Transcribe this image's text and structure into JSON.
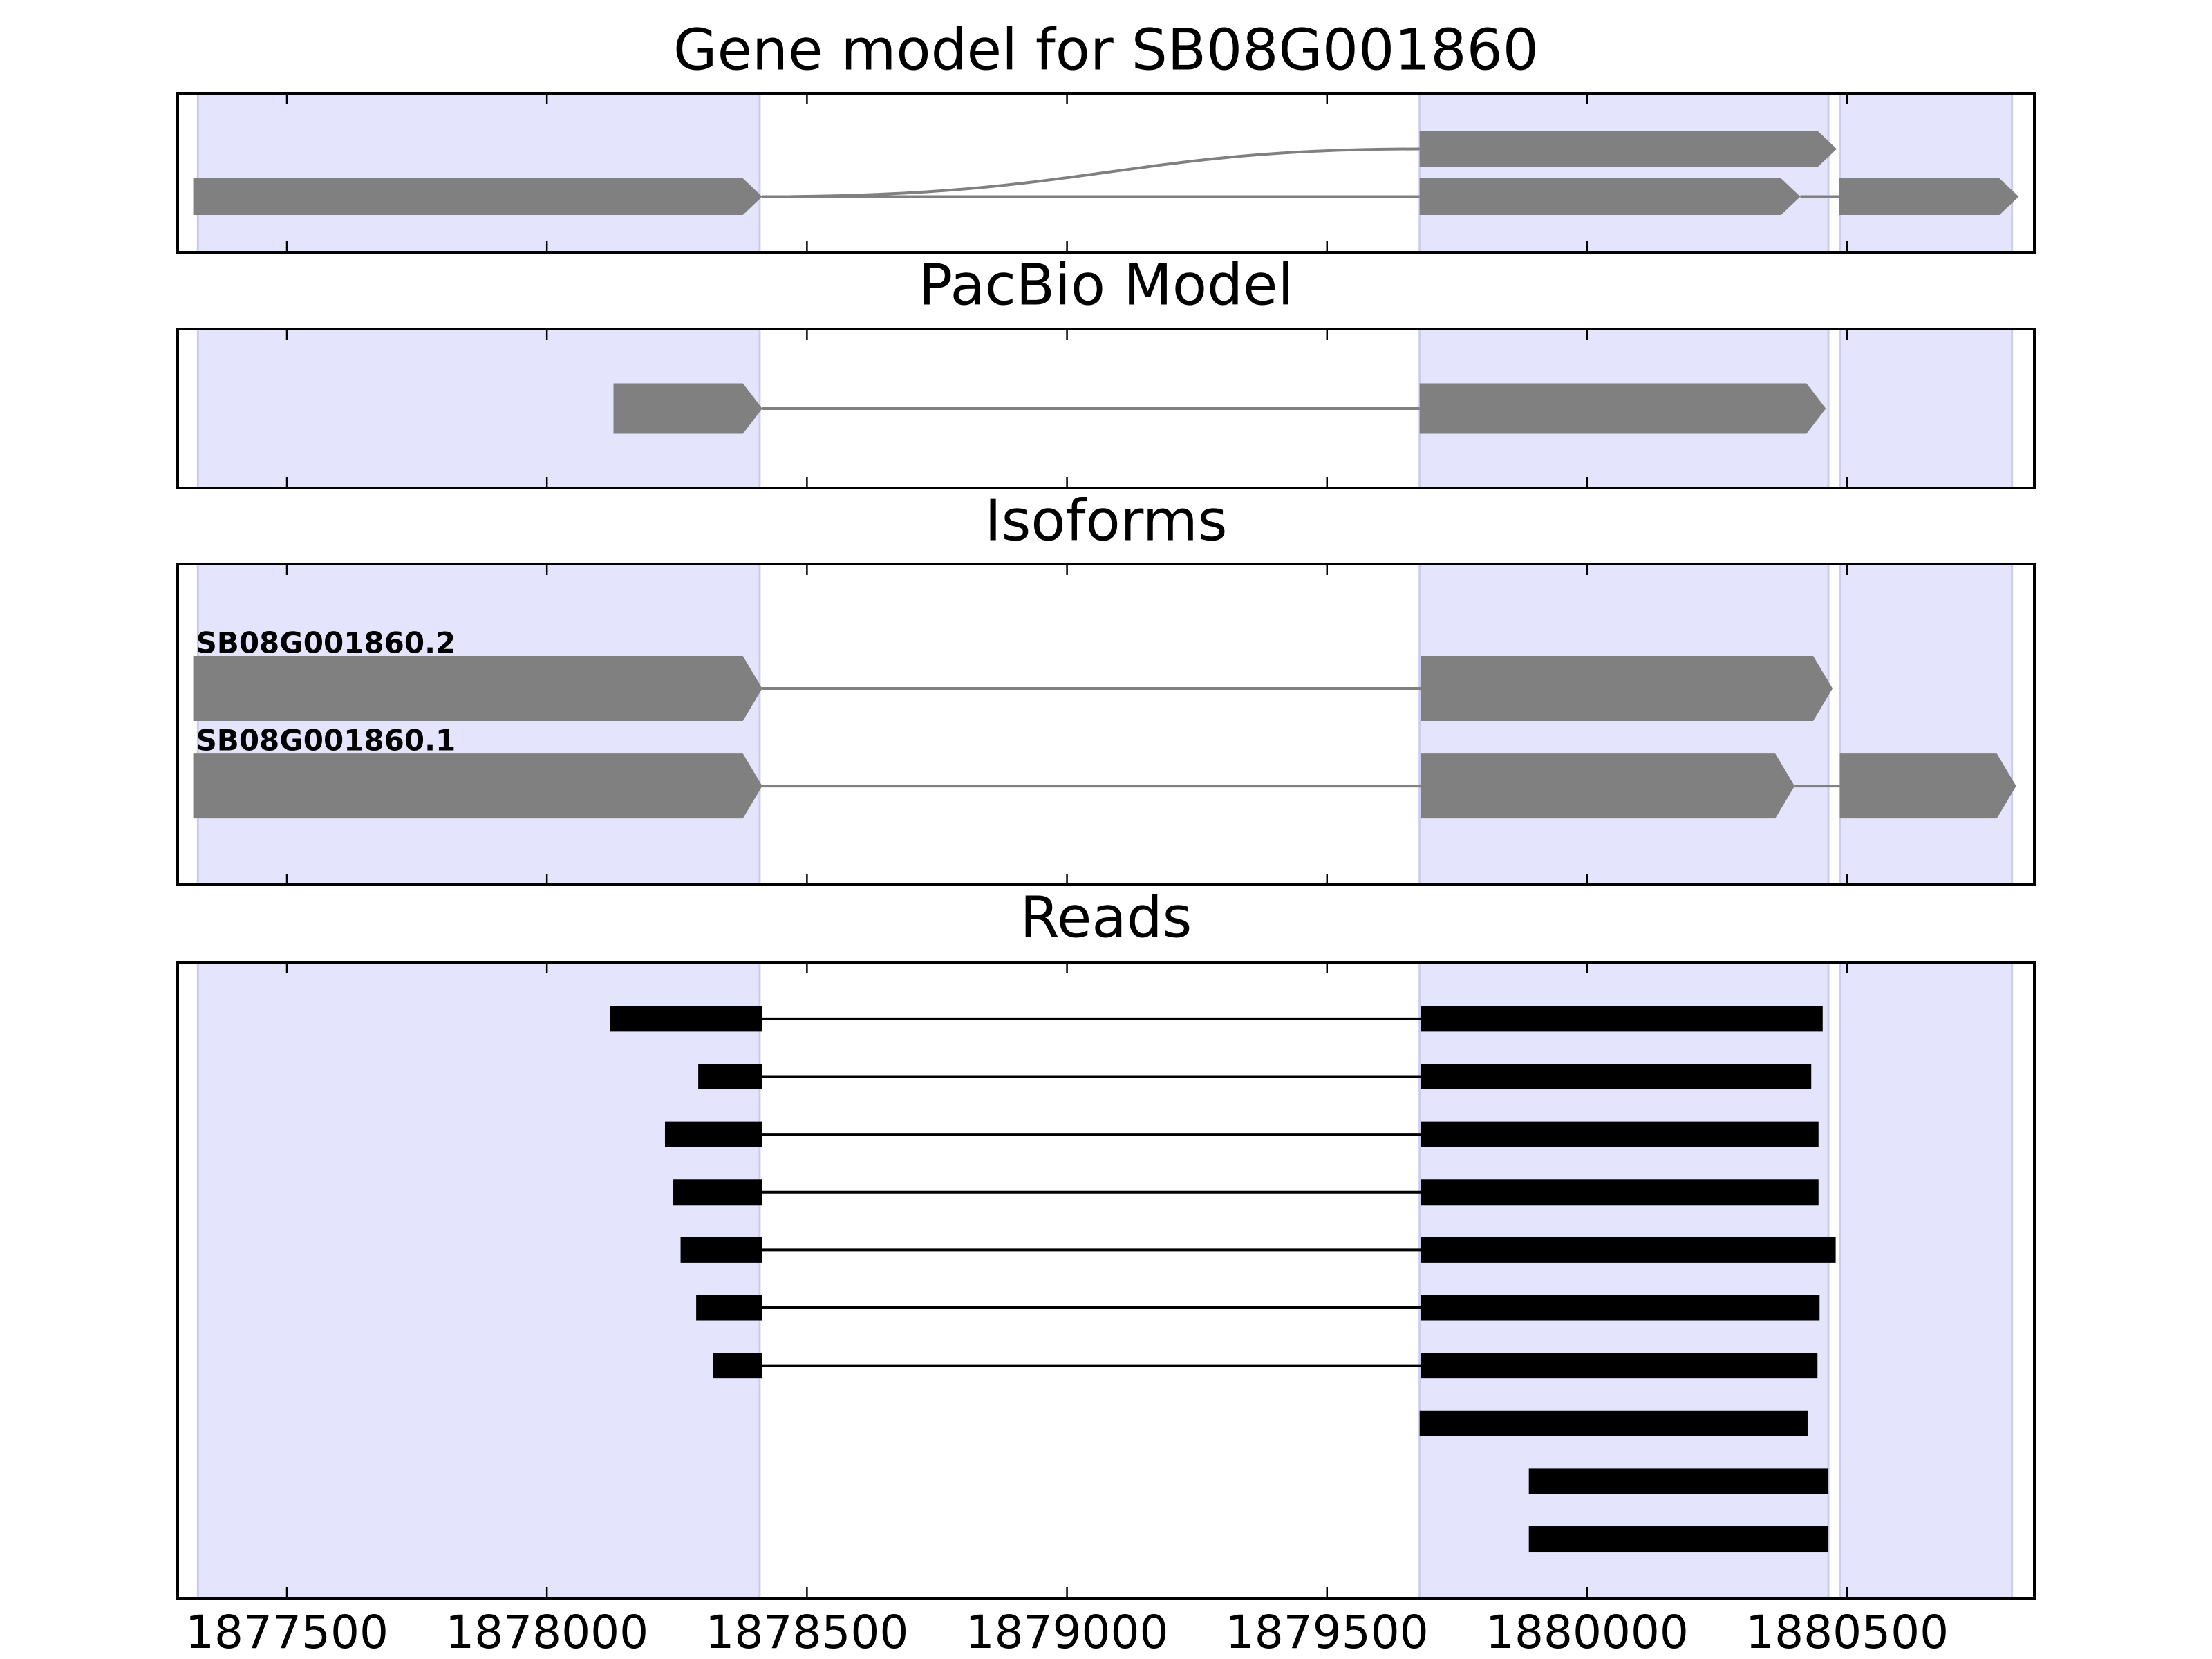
{
  "chart_data": [
    {
      "type": "gene-model",
      "title": "Gene model for SB08G001860",
      "xlim": [
        1877290,
        1880860
      ],
      "xticks": [
        1877500,
        1878000,
        1878500,
        1879000,
        1879500,
        1880000,
        1880500
      ],
      "tick_labels": false,
      "regions": [
        [
          1877329,
          1878409
        ],
        [
          1879678,
          1880464
        ],
        [
          1880486,
          1880817
        ]
      ],
      "color": "#808080",
      "arrows": true,
      "tracks": [
        {
          "exons": [
            [
              1879678,
              1880480
            ]
          ]
        },
        {
          "exons": [
            [
              1877320,
              1878414
            ],
            [
              1879678,
              1880410
            ],
            [
              1880484,
              1880830
            ]
          ]
        }
      ]
    },
    {
      "type": "gene-track",
      "title": "PacBio Model",
      "xlim": [
        1877290,
        1880860
      ],
      "xticks": [
        1877500,
        1878000,
        1878500,
        1879000,
        1879500,
        1880000,
        1880500
      ],
      "tick_labels": false,
      "regions": [
        [
          1877329,
          1878409
        ],
        [
          1879678,
          1880464
        ],
        [
          1880486,
          1880817
        ]
      ],
      "color": "#808080",
      "arrows": true,
      "tracks": [
        {
          "exons": [
            [
              1878128,
              1878414
            ],
            [
              1879678,
              1880459
            ]
          ]
        }
      ]
    },
    {
      "type": "gene-track",
      "title": "Isoforms",
      "xlim": [
        1877290,
        1880860
      ],
      "xticks": [
        1877500,
        1878000,
        1878500,
        1879000,
        1879500,
        1880000,
        1880500
      ],
      "tick_labels": false,
      "regions": [
        [
          1877329,
          1878409
        ],
        [
          1879678,
          1880464
        ],
        [
          1880486,
          1880817
        ]
      ],
      "color": "#808080",
      "arrows": true,
      "tracks": [
        {
          "name": "SB08G001860.2",
          "exons": [
            [
              1877320,
              1878414
            ],
            [
              1879680,
              1880472
            ]
          ]
        },
        {
          "name": "SB08G001860.1",
          "exons": [
            [
              1877320,
              1878414
            ],
            [
              1879680,
              1880399
            ],
            [
              1880486,
              1880825
            ]
          ]
        }
      ]
    },
    {
      "type": "gene-track",
      "title": "Reads",
      "xlim": [
        1877290,
        1880860
      ],
      "xticks": [
        1877500,
        1878000,
        1878500,
        1879000,
        1879500,
        1880000,
        1880500
      ],
      "tick_labels": true,
      "regions": [
        [
          1877329,
          1878409
        ],
        [
          1879678,
          1880464
        ],
        [
          1880486,
          1880817
        ]
      ],
      "color": "#000000",
      "arrows": false,
      "tracks": [
        {
          "exons": [
            [
              1878122,
              1878414
            ],
            [
              1879680,
              1880453
            ]
          ]
        },
        {
          "exons": [
            [
              1878291,
              1878414
            ],
            [
              1879680,
              1880431
            ]
          ]
        },
        {
          "exons": [
            [
              1878227,
              1878414
            ],
            [
              1879680,
              1880445
            ]
          ]
        },
        {
          "exons": [
            [
              1878243,
              1878414
            ],
            [
              1879680,
              1880445
            ]
          ]
        },
        {
          "exons": [
            [
              1878257,
              1878414
            ],
            [
              1879680,
              1880478
            ]
          ]
        },
        {
          "exons": [
            [
              1878287,
              1878414
            ],
            [
              1879680,
              1880447
            ]
          ]
        },
        {
          "exons": [
            [
              1878319,
              1878414
            ],
            [
              1879680,
              1880443
            ]
          ]
        },
        {
          "exons": [
            [
              1879678,
              1880424
            ]
          ]
        },
        {
          "exons": [
            [
              1879888,
              1880464
            ]
          ]
        },
        {
          "exons": [
            [
              1879888,
              1880464
            ]
          ]
        }
      ]
    }
  ]
}
